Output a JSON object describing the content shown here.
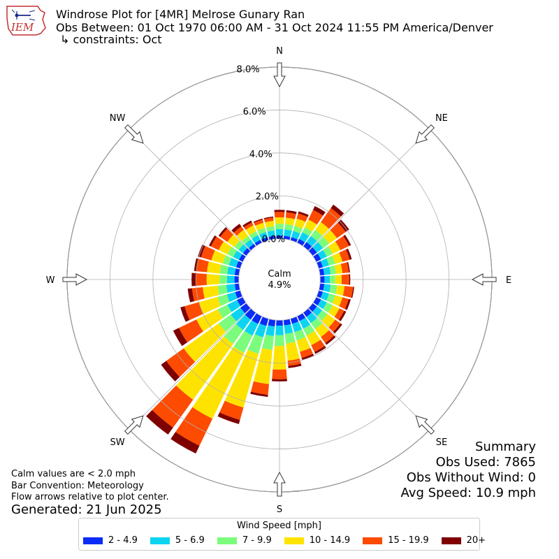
{
  "header": {
    "title": "Windrose Plot for [4MR] Melrose Gunary Ran",
    "subtitle": "Obs Between: 01 Oct 1970 06:00 AM - 31 Oct 2024 11:55 PM America/Denver",
    "constraints": "↳ constraints: Oct",
    "logo_text": "IEM"
  },
  "summary": {
    "heading": "Summary",
    "obs_used": "Obs Used: 7865",
    "obs_without_wind": "Obs Without Wind: 0",
    "avg_speed": "Avg Speed: 10.9 mph"
  },
  "notes": {
    "calm_note": "Calm values are < 2.0 mph",
    "bar_convention": "Bar Convention: Meteorology",
    "flow_note": "Flow arrows relative to plot center.",
    "generated": "Generated: 21 Jun 2025"
  },
  "chart_data": {
    "type": "windrose",
    "calm_label": "Calm",
    "calm_value": "4.9%",
    "radial_ticks": [
      "0.0%",
      "2.0%",
      "4.0%",
      "6.0%",
      "8.0%"
    ],
    "radial_tick_values": [
      0,
      2,
      4,
      6,
      8
    ],
    "rmax": 9.9,
    "calm_radius_value": 1.9,
    "cardinal_labels": [
      "N",
      "NE",
      "E",
      "SE",
      "S",
      "SW",
      "W",
      "NW"
    ],
    "legend_title": "Wind Speed [mph]",
    "bins": [
      {
        "label": "2 - 4.9",
        "color": "#0a2cf6"
      },
      {
        "label": "5 - 6.9",
        "color": "#0cd4f0"
      },
      {
        "label": "7 - 9.9",
        "color": "#7cfc7c"
      },
      {
        "label": "10 - 14.9",
        "color": "#fee300"
      },
      {
        "label": "15 - 19.9",
        "color": "#fd4b02"
      },
      {
        "label": "20+",
        "color": "#7e0000"
      }
    ],
    "directions_deg": [
      0,
      10,
      20,
      30,
      40,
      50,
      60,
      70,
      80,
      90,
      100,
      110,
      120,
      130,
      140,
      150,
      160,
      170,
      180,
      190,
      200,
      210,
      220,
      230,
      240,
      250,
      260,
      270,
      280,
      290,
      300,
      310,
      320,
      330,
      340,
      350
    ],
    "cumulative": [
      [
        0.15,
        0.45,
        0.7,
        1.0,
        1.25,
        1.35
      ],
      [
        0.15,
        0.45,
        0.7,
        1.0,
        1.25,
        1.35
      ],
      [
        0.15,
        0.45,
        0.7,
        1.05,
        1.3,
        1.4
      ],
      [
        0.2,
        0.55,
        0.8,
        1.2,
        1.7,
        1.9
      ],
      [
        0.25,
        0.6,
        0.95,
        1.4,
        2.2,
        2.4
      ],
      [
        0.25,
        0.6,
        0.95,
        1.4,
        1.9,
        2.1
      ],
      [
        0.25,
        0.55,
        0.85,
        1.25,
        1.7,
        1.8
      ],
      [
        0.2,
        0.5,
        0.8,
        1.15,
        1.5,
        1.6
      ],
      [
        0.2,
        0.5,
        0.75,
        1.05,
        1.35,
        1.4
      ],
      [
        0.2,
        0.45,
        0.7,
        1.0,
        1.35,
        1.4
      ],
      [
        0.2,
        0.5,
        0.8,
        1.15,
        1.55,
        1.6
      ],
      [
        0.2,
        0.5,
        0.8,
        1.15,
        1.45,
        1.55
      ],
      [
        0.25,
        0.55,
        0.85,
        1.2,
        1.45,
        1.55
      ],
      [
        0.25,
        0.55,
        0.85,
        1.3,
        1.6,
        1.7
      ],
      [
        0.25,
        0.6,
        0.95,
        1.4,
        1.75,
        1.85
      ],
      [
        0.25,
        0.65,
        1.0,
        1.5,
        1.85,
        1.95
      ],
      [
        0.25,
        0.65,
        1.05,
        1.6,
        1.9,
        2.0
      ],
      [
        0.25,
        0.65,
        1.1,
        1.9,
        2.15,
        2.25
      ],
      [
        0.25,
        0.7,
        1.2,
        2.3,
        2.75,
        2.85
      ],
      [
        0.3,
        0.75,
        1.4,
        3.0,
        3.5,
        3.6
      ],
      [
        0.35,
        0.9,
        1.7,
        4.3,
        4.9,
        5.1
      ],
      [
        0.4,
        1.0,
        1.9,
        5.3,
        6.7,
        7.1
      ],
      [
        0.4,
        1.0,
        1.8,
        5.0,
        6.6,
        7.0
      ],
      [
        0.35,
        0.9,
        1.6,
        3.6,
        4.6,
        4.9
      ],
      [
        0.3,
        0.8,
        1.3,
        2.4,
        3.3,
        3.6
      ],
      [
        0.25,
        0.65,
        1.1,
        2.0,
        2.7,
        2.9
      ],
      [
        0.2,
        0.6,
        1.0,
        1.7,
        2.2,
        2.4
      ],
      [
        0.2,
        0.55,
        0.9,
        1.5,
        2.0,
        2.2
      ],
      [
        0.2,
        0.55,
        0.9,
        1.5,
        2.0,
        2.1
      ],
      [
        0.2,
        0.55,
        0.85,
        1.4,
        1.9,
        2.05
      ],
      [
        0.2,
        0.5,
        0.8,
        1.25,
        1.65,
        1.75
      ],
      [
        0.2,
        0.45,
        0.7,
        1.1,
        1.5,
        1.6
      ],
      [
        0.15,
        0.4,
        0.6,
        0.95,
        1.15,
        1.3
      ],
      [
        0.15,
        0.4,
        0.6,
        0.9,
        1.05,
        1.15
      ],
      [
        0.15,
        0.4,
        0.6,
        0.85,
        1.0,
        1.05
      ],
      [
        0.15,
        0.4,
        0.6,
        0.85,
        1.0,
        1.05
      ]
    ]
  }
}
